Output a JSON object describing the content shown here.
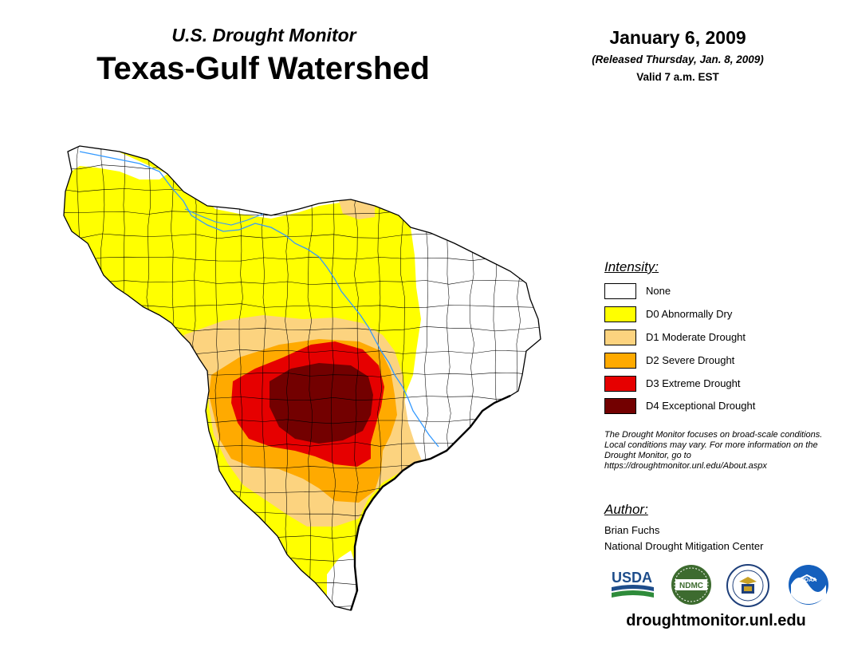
{
  "header": {
    "subtitle": "U.S. Drought Monitor",
    "title": "Texas-Gulf Watershed",
    "date": "January 6, 2009",
    "released": "(Released Thursday, Jan. 8, 2009)",
    "valid": "Valid 7 a.m. EST"
  },
  "legend": {
    "title": "Intensity:",
    "items": [
      {
        "label": "None",
        "color": "#ffffff"
      },
      {
        "label": "D0 Abnormally Dry",
        "color": "#ffff00"
      },
      {
        "label": "D1 Moderate Drought",
        "color": "#fcd37f"
      },
      {
        "label": "D2 Severe Drought",
        "color": "#ffaa00"
      },
      {
        "label": "D3 Extreme Drought",
        "color": "#e60000"
      },
      {
        "label": "D4 Exceptional Drought",
        "color": "#730000"
      }
    ]
  },
  "note": "The Drought Monitor focuses on broad-scale conditions. Local conditions may vary. For more information on the Drought Monitor, go to https://droughtmonitor.unl.edu/About.aspx",
  "author": {
    "heading": "Author:",
    "name": "Brian Fuchs",
    "organization": "National Drought Mitigation Center"
  },
  "logos": {
    "usda": "USDA",
    "ndmc": "NDMC",
    "noaa": "NOAA"
  },
  "website": "droughtmonitor.unl.edu",
  "colors": {
    "river": "#3399ff",
    "county_lines": "#000000"
  }
}
